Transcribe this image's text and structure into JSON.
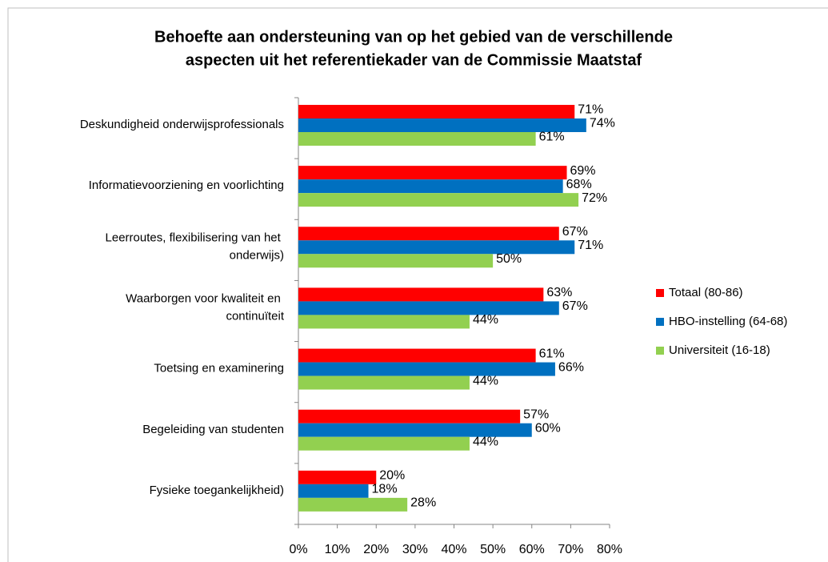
{
  "chart_data": {
    "type": "bar",
    "orientation": "horizontal",
    "title": [
      "Behoefte aan ondersteuning van op het gebied van de verschillende",
      "aspecten uit het referentiekader van de  Commissie Maatstaf"
    ],
    "categories": [
      "Deskundigheid onderwijsprofessionals",
      "Informatievoorziening en voorlichting",
      "Leerroutes, flexibilisering van het onderwijs)",
      "Waarborgen voor kwaliteit en continuïteit",
      "Toetsing en examinering",
      "Begeleiding van studenten",
      "Fysieke toegankelijkheid)"
    ],
    "series": [
      {
        "name": "Totaal (80-86)",
        "color": "#ff0000",
        "values": [
          71,
          69,
          67,
          63,
          61,
          57,
          20
        ],
        "value_labels": [
          "71%",
          "69%",
          "67%",
          "63%",
          "61%",
          "57%",
          "20%"
        ]
      },
      {
        "name": "HBO-instelling (64-68)",
        "color": "#0070c0",
        "values": [
          74,
          68,
          71,
          67,
          66,
          60,
          18
        ],
        "value_labels": [
          "74%",
          "68%",
          "71%",
          "67%",
          "66%",
          "60%",
          "18%"
        ]
      },
      {
        "name": "Universiteit (16-18)",
        "color": "#92d050",
        "values": [
          61,
          72,
          50,
          44,
          44,
          44,
          28
        ],
        "value_labels": [
          "61%",
          "72%",
          "50%",
          "44%",
          "44%",
          "44%",
          "28%"
        ]
      }
    ],
    "xlim": [
      0,
      80
    ],
    "xticks": [
      {
        "value": 0,
        "label": "0%"
      },
      {
        "value": 10,
        "label": "10%"
      },
      {
        "value": 20,
        "label": "20%"
      },
      {
        "value": 30,
        "label": "30%"
      },
      {
        "value": 40,
        "label": "40%"
      },
      {
        "value": 50,
        "label": "50%"
      },
      {
        "value": 60,
        "label": "60%"
      },
      {
        "value": 70,
        "label": "70%"
      },
      {
        "value": 80,
        "label": "80%"
      }
    ],
    "legend": "right"
  }
}
